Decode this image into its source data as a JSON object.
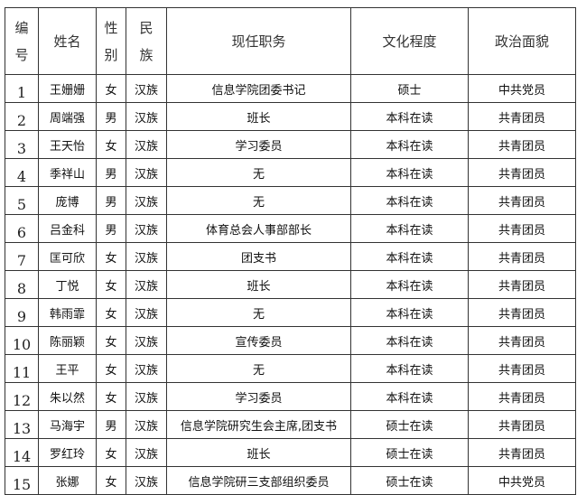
{
  "headers": {
    "number": [
      "编",
      "号"
    ],
    "name": "姓名",
    "gender": [
      "性",
      "别"
    ],
    "ethnicity": [
      "民",
      "族"
    ],
    "position": "现任职务",
    "education": "文化程度",
    "political": "政治面貌"
  },
  "rows": [
    {
      "number": "1",
      "name": "王姗姗",
      "gender": "女",
      "ethnicity": "汉族",
      "position": "信息学院团委书记",
      "education": "硕士",
      "political": "中共党员"
    },
    {
      "number": "2",
      "name": "周端强",
      "gender": "男",
      "ethnicity": "汉族",
      "position": "班长",
      "education": "本科在读",
      "political": "共青团员"
    },
    {
      "number": "3",
      "name": "王天怡",
      "gender": "女",
      "ethnicity": "汉族",
      "position": "学习委员",
      "education": "本科在读",
      "political": "共青团员"
    },
    {
      "number": "4",
      "name": "季祥山",
      "gender": "男",
      "ethnicity": "汉族",
      "position": "无",
      "education": "本科在读",
      "political": "共青团员"
    },
    {
      "number": "5",
      "name": "庞博",
      "gender": "男",
      "ethnicity": "汉族",
      "position": "无",
      "education": "本科在读",
      "political": "共青团员"
    },
    {
      "number": "6",
      "name": "吕金科",
      "gender": "男",
      "ethnicity": "汉族",
      "position": "体育总会人事部部长",
      "education": "本科在读",
      "political": "共青团员"
    },
    {
      "number": "7",
      "name": "匡可欣",
      "gender": "女",
      "ethnicity": "汉族",
      "position": "团支书",
      "education": "本科在读",
      "political": "共青团员"
    },
    {
      "number": "8",
      "name": "丁悦",
      "gender": "女",
      "ethnicity": "汉族",
      "position": "班长",
      "education": "本科在读",
      "political": "共青团员"
    },
    {
      "number": "9",
      "name": "韩雨霏",
      "gender": "女",
      "ethnicity": "汉族",
      "position": "无",
      "education": "本科在读",
      "political": "共青团员"
    },
    {
      "number": "10",
      "name": "陈丽颖",
      "gender": "女",
      "ethnicity": "汉族",
      "position": "宣传委员",
      "education": "本科在读",
      "political": "共青团员"
    },
    {
      "number": "11",
      "name": "王平",
      "gender": "女",
      "ethnicity": "汉族",
      "position": "无",
      "education": "本科在读",
      "political": "共青团员"
    },
    {
      "number": "12",
      "name": "朱以然",
      "gender": "女",
      "ethnicity": "汉族",
      "position": "学习委员",
      "education": "本科在读",
      "political": "共青团员"
    },
    {
      "number": "13",
      "name": "马海宇",
      "gender": "男",
      "ethnicity": "汉族",
      "position": "信息学院研究生会主席,团支书",
      "education": "硕士在读",
      "political": "共青团员"
    },
    {
      "number": "14",
      "name": "罗红玲",
      "gender": "女",
      "ethnicity": "汉族",
      "position": "班长",
      "education": "硕士在读",
      "political": "共青团员"
    },
    {
      "number": "15",
      "name": "张娜",
      "gender": "女",
      "ethnicity": "汉族",
      "position": "信息学院研三支部组织委员",
      "education": "硕士在读",
      "political": "中共党员"
    }
  ]
}
